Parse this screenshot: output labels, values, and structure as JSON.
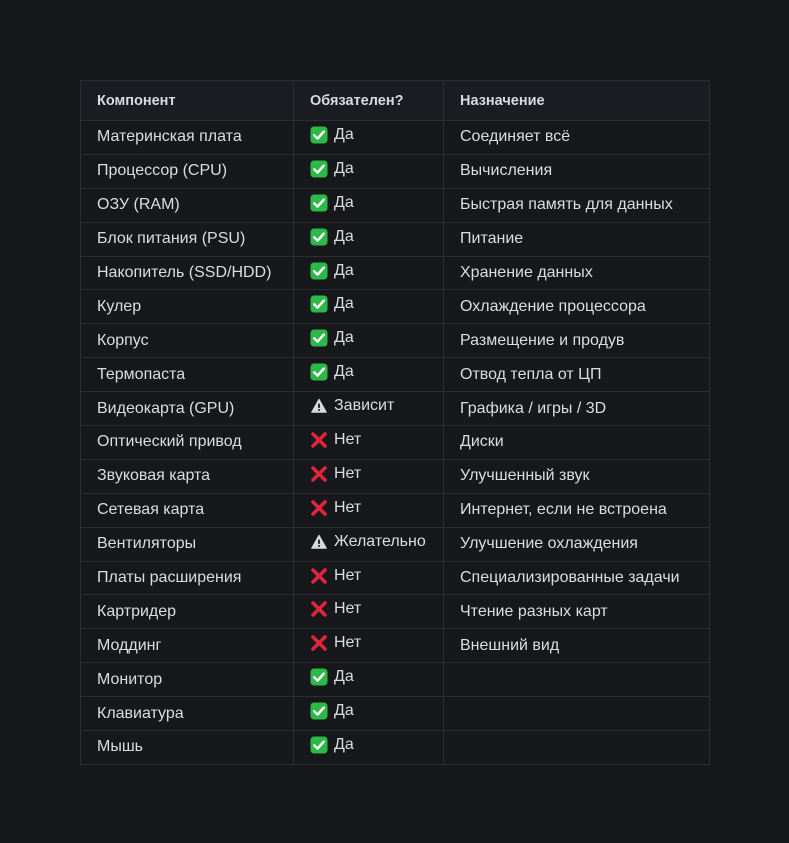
{
  "table": {
    "headers": [
      "Компонент",
      "Обязателен?",
      "Назначение"
    ],
    "rows": [
      {
        "component": "Материнская плата",
        "status_icon": "check-icon",
        "status_text": "Да",
        "purpose": "Соединяет всё"
      },
      {
        "component": "Процессор (CPU)",
        "status_icon": "check-icon",
        "status_text": "Да",
        "purpose": "Вычисления"
      },
      {
        "component": "ОЗУ (RAM)",
        "status_icon": "check-icon",
        "status_text": "Да",
        "purpose": "Быстрая память для данных"
      },
      {
        "component": "Блок питания (PSU)",
        "status_icon": "check-icon",
        "status_text": "Да",
        "purpose": "Питание"
      },
      {
        "component": "Накопитель (SSD/HDD)",
        "status_icon": "check-icon",
        "status_text": "Да",
        "purpose": "Хранение данных"
      },
      {
        "component": "Кулер",
        "status_icon": "check-icon",
        "status_text": "Да",
        "purpose": "Охлаждение процессора"
      },
      {
        "component": "Корпус",
        "status_icon": "check-icon",
        "status_text": "Да",
        "purpose": "Размещение и продув"
      },
      {
        "component": "Термопаста",
        "status_icon": "check-icon",
        "status_text": "Да",
        "purpose": "Отвод тепла от ЦП"
      },
      {
        "component": "Видеокарта (GPU)",
        "status_icon": "warning-icon",
        "status_text": "Зависит",
        "purpose": "Графика / игры / 3D"
      },
      {
        "component": "Оптический привод",
        "status_icon": "cross-icon",
        "status_text": "Нет",
        "purpose": "Диски"
      },
      {
        "component": "Звуковая карта",
        "status_icon": "cross-icon",
        "status_text": "Нет",
        "purpose": "Улучшенный звук"
      },
      {
        "component": "Сетевая карта",
        "status_icon": "cross-icon",
        "status_text": "Нет",
        "purpose": "Интернет, если не встроена"
      },
      {
        "component": "Вентиляторы",
        "status_icon": "warning-icon",
        "status_text": "Желательно",
        "purpose": "Улучшение охлаждения"
      },
      {
        "component": "Платы расширения",
        "status_icon": "cross-icon",
        "status_text": "Нет",
        "purpose": "Специализированные задачи"
      },
      {
        "component": "Картридер",
        "status_icon": "cross-icon",
        "status_text": "Нет",
        "purpose": "Чтение разных карт"
      },
      {
        "component": "Моддинг",
        "status_icon": "cross-icon",
        "status_text": "Нет",
        "purpose": "Внешний вид"
      },
      {
        "component": "Монитор",
        "status_icon": "check-icon",
        "status_text": "Да",
        "purpose": ""
      },
      {
        "component": "Клавиатура",
        "status_icon": "check-icon",
        "status_text": "Да",
        "purpose": ""
      },
      {
        "component": "Мышь",
        "status_icon": "check-icon",
        "status_text": "Да",
        "purpose": ""
      }
    ]
  },
  "colors": {
    "background": "#17181c",
    "header_background": "#1c1d22",
    "border": "#2c2e34",
    "check": "#2eb84a",
    "cross": "#e0243a",
    "warning": "#d8d9dc"
  }
}
